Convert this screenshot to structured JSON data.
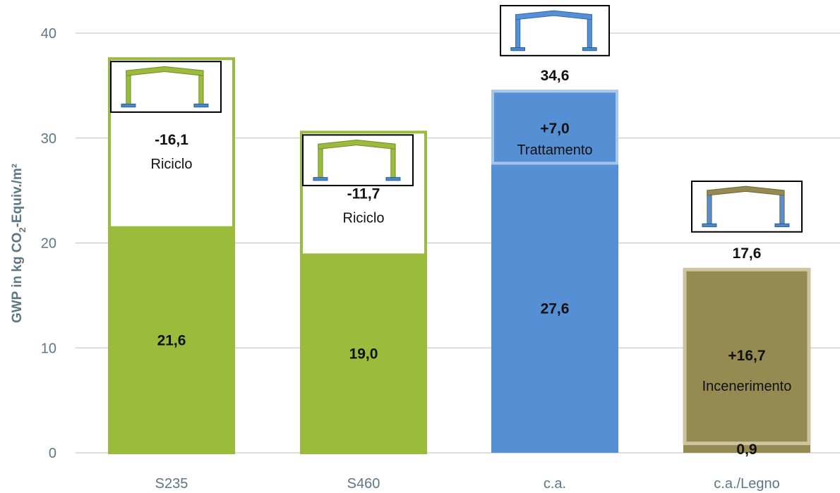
{
  "chart_data": {
    "type": "bar",
    "ylabel": "GWP in kg CO2-Equiv./m²",
    "ylabel_parts": {
      "pre": "GWP in kg CO",
      "sub": "2",
      "post": "-Equiv./m²"
    },
    "ylim": [
      0,
      40
    ],
    "yticks": [
      "0",
      "10",
      "20",
      "30",
      "40"
    ],
    "grid": true,
    "colors": {
      "steel": "#9bbb3c",
      "concrete": "#578fd4",
      "concrete_light": "#a7c6ec",
      "wood": "#958a52",
      "wood_light": "#ccc39f",
      "grid": "#bfbfbf",
      "axis_text": "#5d7785"
    },
    "categories": [
      "S235",
      "S460",
      "c.a.",
      "c.a./Legno"
    ],
    "bars": [
      {
        "category": "S235",
        "base_value": 21.6,
        "base_label": "21,6",
        "eol_value": -16.1,
        "eol_label": "-16,1",
        "eol_note": "Riciclo",
        "total": 37.7,
        "icon": "steel-frame-icon"
      },
      {
        "category": "S460",
        "base_value": 19.0,
        "base_label": "19,0",
        "eol_value": -11.7,
        "eol_label": "-11,7",
        "eol_note": "Riciclo",
        "total": 30.7,
        "icon": "steel-frame-icon"
      },
      {
        "category": "c.a.",
        "base_value": 27.6,
        "base_label": "27,6",
        "eol_value": 7.0,
        "eol_label": "+7,0",
        "eol_note": "Trattamento",
        "total": 34.6,
        "total_label": "34,6",
        "icon": "concrete-frame-icon"
      },
      {
        "category": "c.a./Legno",
        "base_value": 0.9,
        "base_label": "0,9",
        "eol_value": 16.7,
        "eol_label": "+16,7",
        "eol_note": "Incenerimento",
        "total": 17.6,
        "total_label": "17,6",
        "icon": "wood-concrete-frame-icon"
      }
    ]
  }
}
